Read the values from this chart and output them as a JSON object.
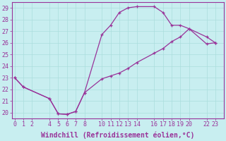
{
  "xlabel": "Windchill (Refroidissement éolien,°C)",
  "ylabel": "",
  "bg_color": "#c8eef0",
  "line_color": "#993399",
  "x_ticks": [
    0,
    1,
    2,
    4,
    5,
    6,
    7,
    8,
    10,
    11,
    12,
    13,
    14,
    16,
    17,
    18,
    19,
    20,
    22,
    23
  ],
  "x_tick_labels": [
    "0",
    "1",
    "2",
    "4",
    "5",
    "6",
    "7",
    "8",
    "10",
    "11",
    "12",
    "13",
    "14",
    "16",
    "17",
    "18",
    "19",
    "20",
    "22",
    "23"
  ],
  "y_ticks": [
    20,
    21,
    22,
    23,
    24,
    25,
    26,
    27,
    28,
    29
  ],
  "xlim": [
    -0.3,
    24.0
  ],
  "ylim": [
    19.5,
    29.5
  ],
  "curve1_x": [
    0,
    1,
    4,
    5,
    6,
    7,
    8,
    10,
    11,
    12,
    13,
    14,
    16,
    17,
    18,
    19,
    20,
    22,
    23
  ],
  "curve1_y": [
    23.0,
    22.2,
    21.2,
    19.9,
    19.85,
    20.1,
    21.7,
    26.7,
    27.5,
    28.6,
    29.0,
    29.1,
    29.1,
    28.6,
    27.5,
    27.5,
    27.2,
    26.5,
    26.0
  ],
  "curve2_x": [
    0,
    1,
    4,
    5,
    6,
    7,
    8,
    10,
    11,
    12,
    13,
    14,
    16,
    17,
    18,
    19,
    20,
    22,
    23
  ],
  "curve2_y": [
    23.0,
    22.2,
    21.2,
    19.9,
    19.85,
    20.1,
    21.7,
    22.9,
    23.15,
    23.4,
    23.8,
    24.3,
    25.1,
    25.5,
    26.1,
    26.5,
    27.2,
    25.9,
    26.0
  ],
  "grid_color": "#aadddd",
  "tick_fontsize": 6,
  "xlabel_fontsize": 7
}
